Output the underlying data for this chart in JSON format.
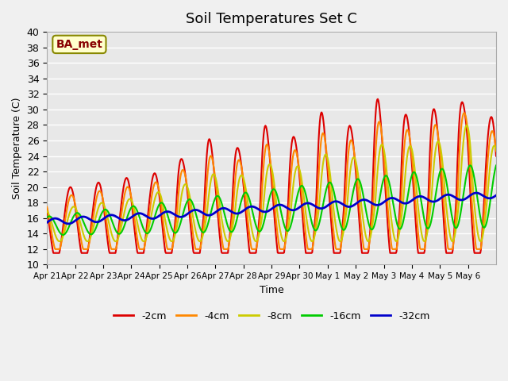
{
  "title": "Soil Temperatures Set C",
  "xlabel": "Time",
  "ylabel": "Soil Temperature (C)",
  "ylim": [
    10,
    40
  ],
  "yticks": [
    10,
    12,
    14,
    16,
    18,
    20,
    22,
    24,
    26,
    28,
    30,
    32,
    34,
    36,
    38,
    40
  ],
  "x_labels": [
    "Apr 21",
    "Apr 22",
    "Apr 23",
    "Apr 24",
    "Apr 25",
    "Apr 26",
    "Apr 27",
    "Apr 28",
    "Apr 29",
    "Apr 30",
    "May 1",
    "May 2",
    "May 3",
    "May 4",
    "May 5",
    "May 6"
  ],
  "colors": {
    "-2cm": "#dd0000",
    "-4cm": "#ff8800",
    "-8cm": "#cccc00",
    "-16cm": "#00cc00",
    "-32cm": "#0000cc"
  },
  "line_widths": {
    "-2cm": 1.5,
    "-4cm": 1.5,
    "-8cm": 1.5,
    "-16cm": 1.5,
    "-32cm": 2.0
  },
  "annotation_text": "BA_met",
  "annotation_color": "#880000",
  "annotation_bg": "#ffffcc",
  "annotation_border": "#888800",
  "background_color": "#e8e8e8",
  "grid_color": "#ffffff",
  "title_fontsize": 13,
  "n_days": 16
}
